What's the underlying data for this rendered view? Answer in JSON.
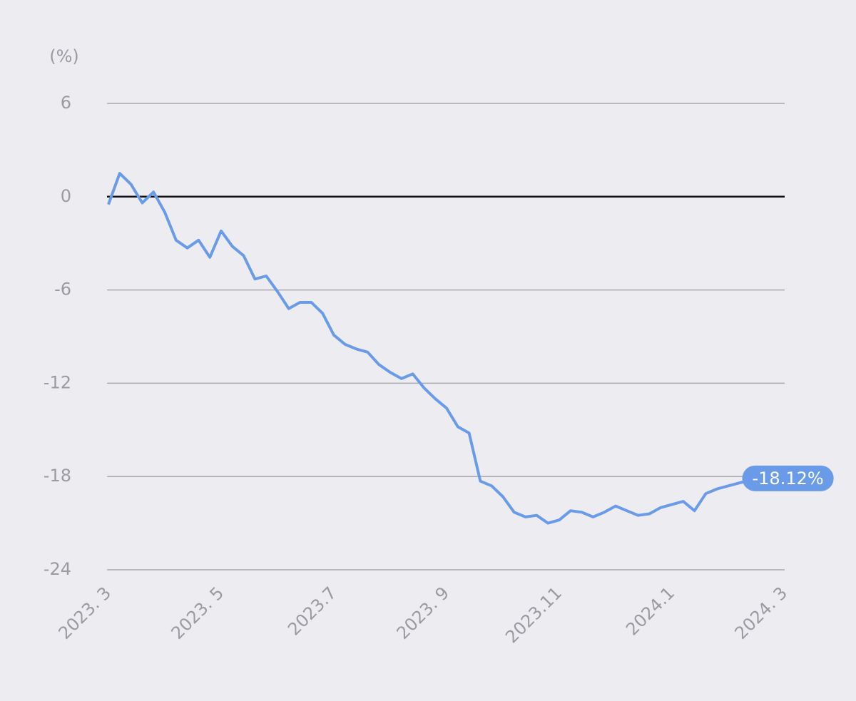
{
  "chart_data": {
    "type": "line",
    "y_axis_label": "(%)",
    "x": [
      "2023-03",
      "2023-03",
      "2023-03",
      "2023-03",
      "2023-03",
      "2023-04",
      "2023-04",
      "2023-04",
      "2023-04",
      "2023-04",
      "2023-05",
      "2023-05",
      "2023-05",
      "2023-05",
      "2023-05",
      "2023-06",
      "2023-06",
      "2023-06",
      "2023-06",
      "2023-06",
      "2023-07",
      "2023-07",
      "2023-07",
      "2023-07",
      "2023-07",
      "2023-08",
      "2023-08",
      "2023-08",
      "2023-08",
      "2023-08",
      "2023-09",
      "2023-09",
      "2023-09",
      "2023-09",
      "2023-09",
      "2023-10",
      "2023-10",
      "2023-10",
      "2023-10",
      "2023-10",
      "2023-11",
      "2023-11",
      "2023-11",
      "2023-11",
      "2023-11",
      "2023-12",
      "2023-12",
      "2023-12",
      "2023-12",
      "2023-12",
      "2024-01",
      "2024-01",
      "2024-01",
      "2024-01",
      "2024-01",
      "2024-02",
      "2024-02"
    ],
    "series": [
      {
        "color": "#6a9be8",
        "values": [
          -0.5,
          1.5,
          0.8,
          -0.4,
          0.3,
          -1,
          -2.8,
          -3.3,
          -2.8,
          -3.9,
          -2.2,
          -3.2,
          -3.8,
          -5.3,
          -5.1,
          -6.1,
          -7.2,
          -6.8,
          -6.8,
          -7.5,
          -8.9,
          -9.5,
          -9.8,
          -10,
          -10.8,
          -11.3,
          -11.7,
          -11.4,
          -12.3,
          -13,
          -13.6,
          -14.8,
          -15.2,
          -18.3,
          -18.6,
          -19.3,
          -20.3,
          -20.6,
          -20.5,
          -21,
          -20.8,
          -20.2,
          -20.3,
          -20.6,
          -20.3,
          -19.9,
          -20.2,
          -20.5,
          -20.4,
          -20,
          -19.8,
          -19.6,
          -20.2,
          -19.1,
          -18.8,
          -18.6,
          -18.12
        ]
      }
    ],
    "last_value_label": "-18.12%",
    "xlim": [
      "2023-03",
      "2024-03"
    ],
    "xticks": [
      {
        "value": "2023-03",
        "label": "2023. 3"
      },
      {
        "value": "2023-05",
        "label": "2023. 5"
      },
      {
        "value": "2023-07",
        "label": "2023.7"
      },
      {
        "value": "2023-09",
        "label": "2023. 9"
      },
      {
        "value": "2023-11",
        "label": "2023.11"
      },
      {
        "value": "2024-01",
        "label": "2024.1"
      },
      {
        "value": "2024-03",
        "label": "2024. 3"
      }
    ],
    "ylim": [
      -24,
      6
    ],
    "yticks": [
      6,
      0,
      -6,
      -12,
      -18,
      -24
    ],
    "grid": true
  }
}
